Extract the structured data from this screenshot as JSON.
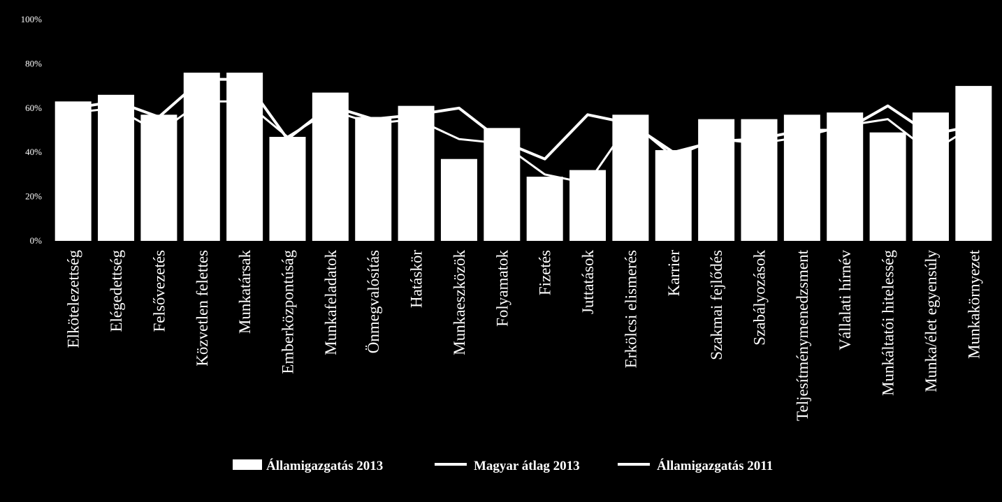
{
  "chart_data": {
    "type": "bar",
    "title": "",
    "xlabel": "",
    "ylabel": "",
    "ylim": [
      0,
      100
    ],
    "yticks": [
      "0%",
      "20%",
      "40%",
      "60%",
      "80%",
      "100%"
    ],
    "grid": false,
    "legend_position": "bottom",
    "categories": [
      "Elkötelezettség",
      "Elégedettség",
      "Felsővezetés",
      "Közvetlen felettes",
      "Munkatársak",
      "Emberközpontúság",
      "Munkafeladatok",
      "Önmegvalósítás",
      "Hatáskör",
      "Munkaeszközök",
      "Folyamatok",
      "Fizetés",
      "Juttatások",
      "Erkölcsi elismerés",
      "Karrier",
      "Szakmai fejlődés",
      "Szabályozások",
      "Teljesítménymenedzsment",
      "Vállalati hírnév",
      "Munkáltatói hitelesség",
      "Munka/élet egyensúly",
      "Munkakörnyezet"
    ],
    "series": [
      {
        "name": "Államigazgatás 2013",
        "kind": "bar",
        "values": [
          63,
          66,
          57,
          76,
          76,
          47,
          67,
          56,
          61,
          37,
          51,
          29,
          32,
          57,
          41,
          55,
          55,
          57,
          58,
          49,
          58,
          70
        ]
      },
      {
        "name": "Magyar átlag 2013",
        "kind": "line",
        "values": [
          58,
          60,
          49,
          63,
          63,
          47,
          59,
          53,
          55,
          46,
          44,
          30,
          26,
          54,
          38,
          46,
          44,
          47,
          52,
          55,
          40,
          52
        ]
      },
      {
        "name": "Államigazgatás 2011",
        "kind": "line",
        "values": [
          60,
          63,
          56,
          73,
          73,
          46,
          61,
          55,
          57,
          60,
          45,
          37,
          57,
          53,
          40,
          45,
          46,
          50,
          50,
          61,
          48,
          52
        ]
      }
    ]
  }
}
